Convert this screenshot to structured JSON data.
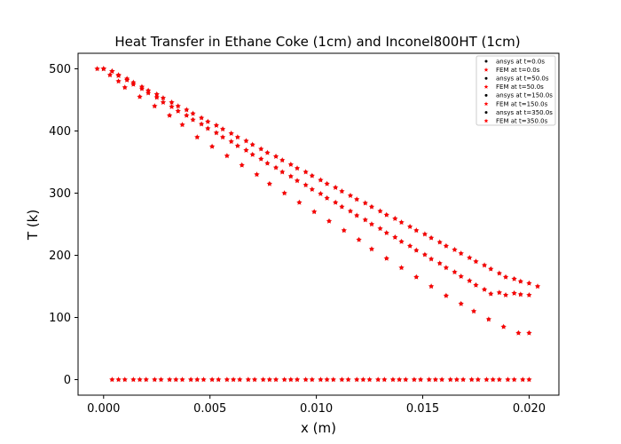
{
  "chart_data": {
    "type": "scatter",
    "title": "Heat Transfer in Ethane Coke (1cm) and Inconel800HT (1cm)",
    "xlabel": "x (m)",
    "ylabel": "T (k)",
    "xlim": [
      -0.0012,
      0.0214
    ],
    "ylim": [
      -25,
      525
    ],
    "xticks": [
      0.0,
      0.005,
      0.01,
      0.015,
      0.02
    ],
    "xtick_labels": [
      "0.000",
      "0.005",
      "0.010",
      "0.015",
      "0.020"
    ],
    "yticks": [
      0,
      100,
      200,
      300,
      400,
      500
    ],
    "ytick_labels": [
      "0",
      "100",
      "200",
      "300",
      "400",
      "500"
    ],
    "grid": false,
    "legend_position": "top-right",
    "series": [
      {
        "name": "ansys at t=0.0s",
        "marker": "circle",
        "color": "#000000",
        "x": [
          0.0004,
          0.0007,
          0.001,
          0.0014,
          0.0017,
          0.002,
          0.0024,
          0.0027,
          0.0031,
          0.0034,
          0.0037,
          0.0041,
          0.0044,
          0.0047,
          0.0051,
          0.0054,
          0.0058,
          0.0061,
          0.0064,
          0.0068,
          0.0071,
          0.0075,
          0.0078,
          0.0081,
          0.0085,
          0.0088,
          0.0091,
          0.0095,
          0.0098,
          0.0102,
          0.0105,
          0.0108,
          0.0112,
          0.0115,
          0.0119,
          0.0122,
          0.0125,
          0.0129,
          0.0132,
          0.0136,
          0.0139,
          0.0142,
          0.0146,
          0.0149,
          0.0153,
          0.0156,
          0.0159,
          0.0163,
          0.0166,
          0.0169,
          0.0173,
          0.0176,
          0.018,
          0.0183,
          0.0186,
          0.019,
          0.0193,
          0.0197,
          0.02
        ],
        "y": [
          0,
          0,
          0,
          0,
          0,
          0,
          0,
          0,
          0,
          0,
          0,
          0,
          0,
          0,
          0,
          0,
          0,
          0,
          0,
          0,
          0,
          0,
          0,
          0,
          0,
          0,
          0,
          0,
          0,
          0,
          0,
          0,
          0,
          0,
          0,
          0,
          0,
          0,
          0,
          0,
          0,
          0,
          0,
          0,
          0,
          0,
          0,
          0,
          0,
          0,
          0,
          0,
          0,
          0,
          0,
          0,
          0,
          0,
          0
        ]
      },
      {
        "name": "FEM at t=0.0s",
        "marker": "star",
        "color": "#ff0000",
        "x": [
          0.0004,
          0.0007,
          0.001,
          0.0014,
          0.0017,
          0.002,
          0.0024,
          0.0027,
          0.0031,
          0.0034,
          0.0037,
          0.0041,
          0.0044,
          0.0047,
          0.0051,
          0.0054,
          0.0058,
          0.0061,
          0.0064,
          0.0068,
          0.0071,
          0.0075,
          0.0078,
          0.0081,
          0.0085,
          0.0088,
          0.0091,
          0.0095,
          0.0098,
          0.0102,
          0.0105,
          0.0108,
          0.0112,
          0.0115,
          0.0119,
          0.0122,
          0.0125,
          0.0129,
          0.0132,
          0.0136,
          0.0139,
          0.0142,
          0.0146,
          0.0149,
          0.0153,
          0.0156,
          0.0159,
          0.0163,
          0.0166,
          0.0169,
          0.0173,
          0.0176,
          0.018,
          0.0183,
          0.0186,
          0.019,
          0.0193,
          0.0197,
          0.02
        ],
        "y": [
          0,
          0,
          0,
          0,
          0,
          0,
          0,
          0,
          0,
          0,
          0,
          0,
          0,
          0,
          0,
          0,
          0,
          0,
          0,
          0,
          0,
          0,
          0,
          0,
          0,
          0,
          0,
          0,
          0,
          0,
          0,
          0,
          0,
          0,
          0,
          0,
          0,
          0,
          0,
          0,
          0,
          0,
          0,
          0,
          0,
          0,
          0,
          0,
          0,
          0,
          0,
          0,
          0,
          0,
          0,
          0,
          0,
          0,
          0
        ]
      },
      {
        "name": "ansys at t=50.0s",
        "marker": "circle",
        "color": "#000000",
        "x": [
          -0.0003,
          0.0,
          0.0003,
          0.0007,
          0.001,
          0.0017,
          0.0024,
          0.0031,
          0.0037,
          0.0044,
          0.0051,
          0.0058,
          0.0065,
          0.0072,
          0.0078,
          0.0085,
          0.0092,
          0.0099,
          0.0106,
          0.0113,
          0.012,
          0.0126,
          0.0133,
          0.014,
          0.0147,
          0.0154,
          0.0161,
          0.0168,
          0.0174,
          0.0181,
          0.0188,
          0.0195,
          0.02
        ],
        "y": [
          500,
          500,
          490,
          480,
          470,
          455,
          440,
          425,
          410,
          390,
          375,
          360,
          345,
          330,
          315,
          300,
          285,
          270,
          255,
          240,
          225,
          210,
          195,
          180,
          165,
          150,
          135,
          122,
          110,
          97,
          85,
          75,
          75
        ]
      },
      {
        "name": "FEM at t=50.0s",
        "marker": "star",
        "color": "#ff0000",
        "x": [
          -0.0003,
          0.0,
          0.0003,
          0.0007,
          0.001,
          0.0017,
          0.0024,
          0.0031,
          0.0037,
          0.0044,
          0.0051,
          0.0058,
          0.0065,
          0.0072,
          0.0078,
          0.0085,
          0.0092,
          0.0099,
          0.0106,
          0.0113,
          0.012,
          0.0126,
          0.0133,
          0.014,
          0.0147,
          0.0154,
          0.0161,
          0.0168,
          0.0174,
          0.0181,
          0.0188,
          0.0195,
          0.02
        ],
        "y": [
          500,
          500,
          490,
          480,
          470,
          455,
          440,
          425,
          410,
          390,
          375,
          360,
          345,
          330,
          315,
          300,
          285,
          270,
          255,
          240,
          225,
          210,
          195,
          180,
          165,
          150,
          135,
          122,
          110,
          97,
          85,
          75,
          75
        ]
      },
      {
        "name": "ansys at t=150.0s",
        "marker": "circle",
        "color": "#000000",
        "x": [
          0.0,
          0.0004,
          0.0007,
          0.0011,
          0.0014,
          0.0018,
          0.0021,
          0.0025,
          0.0028,
          0.0032,
          0.0035,
          0.0039,
          0.0042,
          0.0046,
          0.0049,
          0.0053,
          0.0056,
          0.006,
          0.0063,
          0.0067,
          0.007,
          0.0074,
          0.0077,
          0.0081,
          0.0084,
          0.0088,
          0.0091,
          0.0095,
          0.0098,
          0.0102,
          0.0105,
          0.0109,
          0.0112,
          0.0116,
          0.0119,
          0.0123,
          0.0126,
          0.013,
          0.0133,
          0.0137,
          0.014,
          0.0144,
          0.0147,
          0.0151,
          0.0154,
          0.0158,
          0.0161,
          0.0165,
          0.0168,
          0.0172,
          0.0175,
          0.0179,
          0.0182,
          0.0186,
          0.0189,
          0.0193,
          0.0196,
          0.02
        ],
        "y": [
          500,
          496,
          489,
          482,
          475,
          468,
          461,
          454,
          446,
          439,
          432,
          425,
          418,
          411,
          404,
          397,
          390,
          383,
          376,
          369,
          362,
          355,
          348,
          341,
          334,
          327,
          320,
          313,
          306,
          299,
          292,
          285,
          278,
          271,
          264,
          257,
          250,
          243,
          236,
          229,
          222,
          215,
          208,
          201,
          194,
          187,
          180,
          173,
          166,
          159,
          152,
          145,
          138,
          140,
          136,
          139,
          137,
          136
        ]
      },
      {
        "name": "FEM at t=150.0s",
        "marker": "star",
        "color": "#ff0000",
        "x": [
          0.0,
          0.0004,
          0.0007,
          0.0011,
          0.0014,
          0.0018,
          0.0021,
          0.0025,
          0.0028,
          0.0032,
          0.0035,
          0.0039,
          0.0042,
          0.0046,
          0.0049,
          0.0053,
          0.0056,
          0.006,
          0.0063,
          0.0067,
          0.007,
          0.0074,
          0.0077,
          0.0081,
          0.0084,
          0.0088,
          0.0091,
          0.0095,
          0.0098,
          0.0102,
          0.0105,
          0.0109,
          0.0112,
          0.0116,
          0.0119,
          0.0123,
          0.0126,
          0.013,
          0.0133,
          0.0137,
          0.014,
          0.0144,
          0.0147,
          0.0151,
          0.0154,
          0.0158,
          0.0161,
          0.0165,
          0.0168,
          0.0172,
          0.0175,
          0.0179,
          0.0182,
          0.0186,
          0.0189,
          0.0193,
          0.0196,
          0.02
        ],
        "y": [
          500,
          496,
          489,
          482,
          475,
          468,
          461,
          454,
          446,
          439,
          432,
          425,
          418,
          411,
          404,
          397,
          390,
          383,
          376,
          369,
          362,
          355,
          348,
          341,
          334,
          327,
          320,
          313,
          306,
          299,
          292,
          285,
          278,
          271,
          264,
          257,
          250,
          243,
          236,
          229,
          222,
          215,
          208,
          201,
          194,
          187,
          180,
          173,
          166,
          159,
          152,
          145,
          138,
          140,
          136,
          139,
          137,
          136
        ]
      },
      {
        "name": "ansys at t=350.0s",
        "marker": "circle",
        "color": "#000000",
        "x": [
          0.0,
          0.0004,
          0.0007,
          0.0011,
          0.0014,
          0.0018,
          0.0021,
          0.0025,
          0.0028,
          0.0032,
          0.0035,
          0.0039,
          0.0042,
          0.0046,
          0.0049,
          0.0053,
          0.0056,
          0.006,
          0.0063,
          0.0067,
          0.007,
          0.0074,
          0.0077,
          0.0081,
          0.0084,
          0.0088,
          0.0091,
          0.0095,
          0.0098,
          0.0102,
          0.0105,
          0.0109,
          0.0112,
          0.0116,
          0.0119,
          0.0123,
          0.0126,
          0.013,
          0.0133,
          0.0137,
          0.014,
          0.0144,
          0.0147,
          0.0151,
          0.0154,
          0.0158,
          0.0161,
          0.0165,
          0.0168,
          0.0172,
          0.0175,
          0.0179,
          0.0182,
          0.0186,
          0.0189,
          0.0193,
          0.0196,
          0.02,
          0.0204
        ],
        "y": [
          500,
          496,
          490,
          484,
          478,
          471,
          465,
          459,
          453,
          446,
          440,
          434,
          428,
          421,
          415,
          409,
          403,
          396,
          390,
          384,
          378,
          371,
          365,
          359,
          353,
          346,
          340,
          334,
          328,
          321,
          315,
          309,
          303,
          296,
          290,
          284,
          278,
          271,
          265,
          259,
          253,
          246,
          240,
          234,
          228,
          221,
          215,
          209,
          203,
          196,
          190,
          184,
          178,
          171,
          165,
          162,
          158,
          155,
          150
        ]
      },
      {
        "name": "FEM at t=350.0s",
        "marker": "star",
        "color": "#ff0000",
        "x": [
          0.0,
          0.0004,
          0.0007,
          0.0011,
          0.0014,
          0.0018,
          0.0021,
          0.0025,
          0.0028,
          0.0032,
          0.0035,
          0.0039,
          0.0042,
          0.0046,
          0.0049,
          0.0053,
          0.0056,
          0.006,
          0.0063,
          0.0067,
          0.007,
          0.0074,
          0.0077,
          0.0081,
          0.0084,
          0.0088,
          0.0091,
          0.0095,
          0.0098,
          0.0102,
          0.0105,
          0.0109,
          0.0112,
          0.0116,
          0.0119,
          0.0123,
          0.0126,
          0.013,
          0.0133,
          0.0137,
          0.014,
          0.0144,
          0.0147,
          0.0151,
          0.0154,
          0.0158,
          0.0161,
          0.0165,
          0.0168,
          0.0172,
          0.0175,
          0.0179,
          0.0182,
          0.0186,
          0.0189,
          0.0193,
          0.0196,
          0.02,
          0.0204
        ],
        "y": [
          500,
          496,
          490,
          484,
          478,
          471,
          465,
          459,
          453,
          446,
          440,
          434,
          428,
          421,
          415,
          409,
          403,
          396,
          390,
          384,
          378,
          371,
          365,
          359,
          353,
          346,
          340,
          334,
          328,
          321,
          315,
          309,
          303,
          296,
          290,
          284,
          278,
          271,
          265,
          259,
          253,
          246,
          240,
          234,
          228,
          221,
          215,
          209,
          203,
          196,
          190,
          184,
          178,
          171,
          165,
          162,
          158,
          155,
          150
        ]
      }
    ]
  }
}
